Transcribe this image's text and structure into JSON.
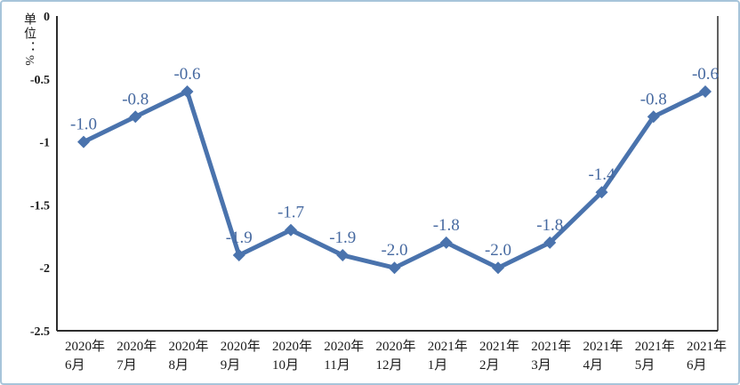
{
  "chart_data": {
    "type": "line",
    "title": "",
    "unit_label": "单位：%",
    "categories": [
      "2020年6月",
      "2020年7月",
      "2020年8月",
      "2020年9月",
      "2020年10月",
      "2020年11月",
      "2020年12月",
      "2021年1月",
      "2021年2月",
      "2021年3月",
      "2021年4月",
      "2021年5月",
      "2021年6月"
    ],
    "x_labels": [
      {
        "year": "2020年",
        "month": "6月"
      },
      {
        "year": "2020年",
        "month": "7月"
      },
      {
        "year": "2020年",
        "month": "8月"
      },
      {
        "year": "2020年",
        "month": "9月"
      },
      {
        "year": "2020年",
        "month": "10月"
      },
      {
        "year": "2020年",
        "month": "11月"
      },
      {
        "year": "2020年",
        "month": "12月"
      },
      {
        "year": "2021年",
        "month": "1月"
      },
      {
        "year": "2021年",
        "month": "2月"
      },
      {
        "year": "2021年",
        "month": "3月"
      },
      {
        "year": "2021年",
        "month": "4月"
      },
      {
        "year": "2021年",
        "month": "5月"
      },
      {
        "year": "2021年",
        "month": "6月"
      }
    ],
    "values": [
      -1.0,
      -0.8,
      -0.6,
      -1.9,
      -1.7,
      -1.9,
      -2.0,
      -1.8,
      -2.0,
      -1.8,
      -1.4,
      -0.8,
      -0.6
    ],
    "data_labels": [
      "-1.0",
      "-0.8",
      "-0.6",
      "-1.9",
      "-1.7",
      "-1.9",
      "-2.0",
      "-1.8",
      "-2.0",
      "-1.8",
      "-1.4",
      "-0.8",
      "-0.6"
    ],
    "y_ticks": [
      {
        "label": "0",
        "value": 0
      },
      {
        "label": "-0.5",
        "value": -0.5
      },
      {
        "label": "-1",
        "value": -1
      },
      {
        "label": "-1.5",
        "value": -1.5
      },
      {
        "label": "-2",
        "value": -2
      },
      {
        "label": "-2.5",
        "value": -2.5
      }
    ],
    "ylim": [
      -2.5,
      0
    ],
    "xlabel": "",
    "ylabel": "单位：%",
    "legend_position": "none",
    "grid": "off",
    "marker": "diamond",
    "colors": {
      "line": "#4a73ad",
      "marker": "#4a73ad",
      "data_label": "#4669a0",
      "axis": "#2d2d2d",
      "tick_text": "#1a1a1a",
      "frame_border": "#a7c4da",
      "background": "#ffffff"
    }
  }
}
